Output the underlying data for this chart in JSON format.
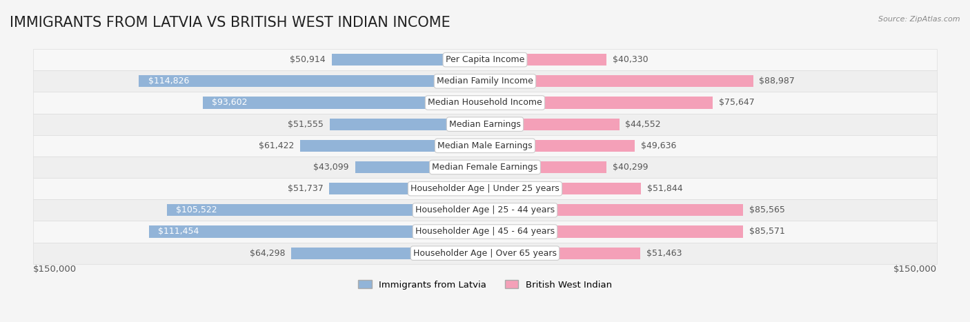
{
  "title": "IMMIGRANTS FROM LATVIA VS BRITISH WEST INDIAN INCOME",
  "source": "Source: ZipAtlas.com",
  "categories": [
    "Per Capita Income",
    "Median Family Income",
    "Median Household Income",
    "Median Earnings",
    "Median Male Earnings",
    "Median Female Earnings",
    "Householder Age | Under 25 years",
    "Householder Age | 25 - 44 years",
    "Householder Age | 45 - 64 years",
    "Householder Age | Over 65 years"
  ],
  "latvia_values": [
    50914,
    114826,
    93602,
    51555,
    61422,
    43099,
    51737,
    105522,
    111454,
    64298
  ],
  "bwi_values": [
    40330,
    88987,
    75647,
    44552,
    49636,
    40299,
    51844,
    85565,
    85571,
    51463
  ],
  "latvia_color": "#92b4d8",
  "bwi_color": "#f4a0b8",
  "latvia_label_color": "#5a7fa8",
  "bwi_label_color": "#d06080",
  "background_color": "#f5f5f5",
  "row_bg_color": "#ffffff",
  "row_alt_bg_color": "#f0f0f0",
  "max_value": 150000,
  "legend_latvia_color": "#92b4d8",
  "legend_bwi_color": "#f4a0b8",
  "legend_latvia_label": "Immigrants from Latvia",
  "legend_bwi_label": "British West Indian",
  "x_label_left": "$150,000",
  "x_label_right": "$150,000",
  "label_fontsize": 9.5,
  "title_fontsize": 15,
  "category_fontsize": 9,
  "value_fontsize": 9
}
